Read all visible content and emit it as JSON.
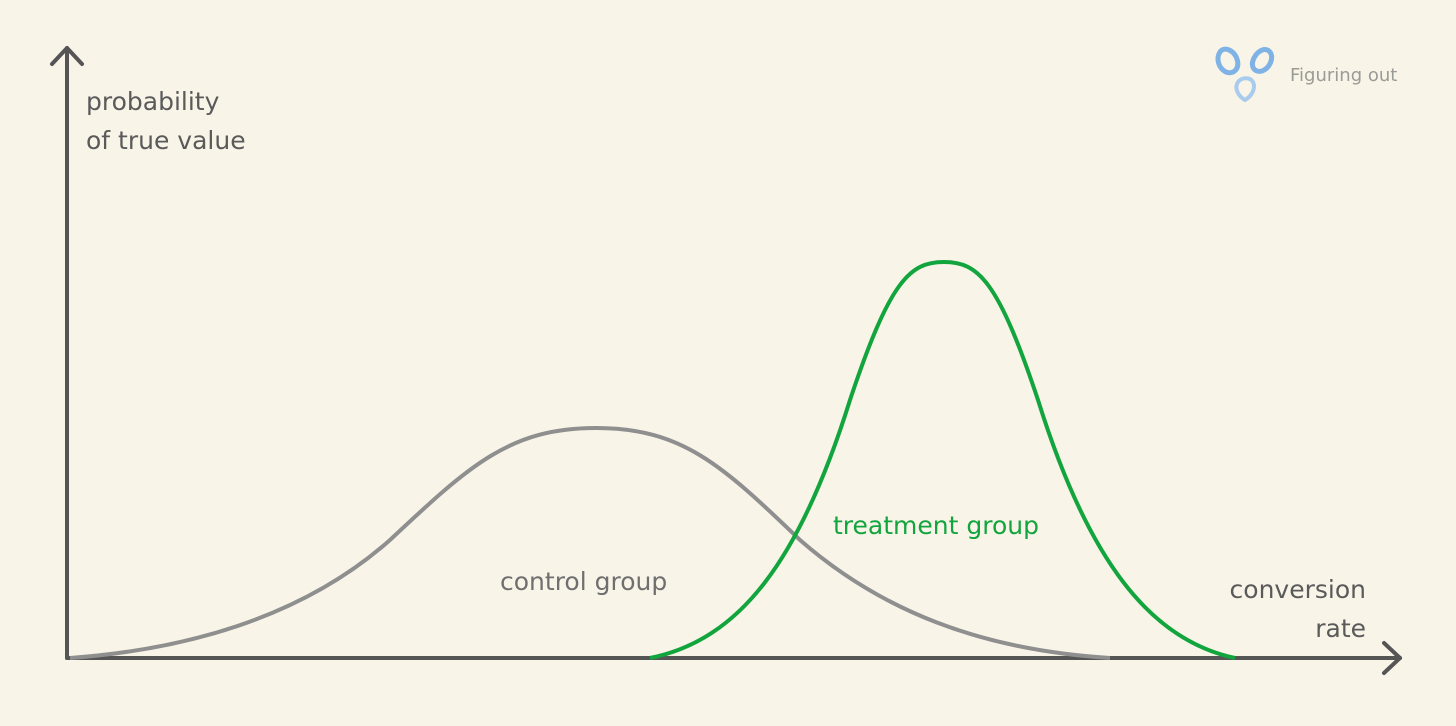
{
  "brand": {
    "name": "Figuring out",
    "logo_icon": "three-droplets-logo-icon",
    "logo_color": "#7fb2e5"
  },
  "axes": {
    "y_label_lines": [
      "probability",
      "of true value"
    ],
    "x_label_lines": [
      "conversion",
      "rate"
    ],
    "color": "#555555"
  },
  "curves": {
    "control": {
      "label": "control group",
      "color": "#8f8f8f"
    },
    "treatment": {
      "label": "treatment group",
      "color": "#12a53e"
    }
  },
  "background": "#f9f4e8"
}
